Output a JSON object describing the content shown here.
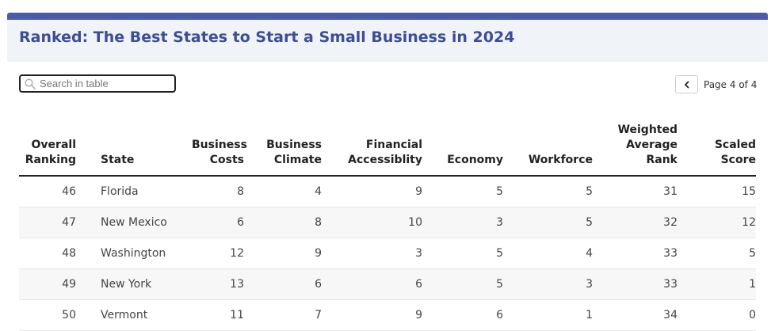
{
  "header": {
    "title": "Ranked: The Best States to Start a Small Business in 2024"
  },
  "search": {
    "placeholder": "Search in table"
  },
  "pagination": {
    "label": "Page 4 of 4"
  },
  "colors": {
    "accent": "#4e5ba6",
    "title": "#3c4d99",
    "header_bg": "#f0f3f8"
  },
  "table": {
    "columns": [
      {
        "line1": "Overall",
        "line2": "Ranking"
      },
      {
        "line1": "",
        "line2": "State"
      },
      {
        "line1": "Business",
        "line2": "Costs"
      },
      {
        "line1": "Business",
        "line2": "Climate"
      },
      {
        "line1": "Financial",
        "line2": "Accessiblity"
      },
      {
        "line1": "",
        "line2": "Economy"
      },
      {
        "line1": "",
        "line2": "Workforce"
      },
      {
        "line0": "Weighted",
        "line1": "Average",
        "line2": "Rank"
      },
      {
        "line1": "Scaled",
        "line2": "Score"
      }
    ],
    "rows": [
      [
        "46",
        "Florida",
        "8",
        "4",
        "9",
        "5",
        "5",
        "31",
        "15"
      ],
      [
        "47",
        "New Mexico",
        "6",
        "8",
        "10",
        "3",
        "5",
        "32",
        "12"
      ],
      [
        "48",
        "Washington",
        "12",
        "9",
        "3",
        "5",
        "4",
        "33",
        "5"
      ],
      [
        "49",
        "New York",
        "13",
        "6",
        "6",
        "5",
        "3",
        "33",
        "1"
      ],
      [
        "50",
        "Vermont",
        "11",
        "7",
        "9",
        "6",
        "1",
        "34",
        "0"
      ]
    ]
  }
}
